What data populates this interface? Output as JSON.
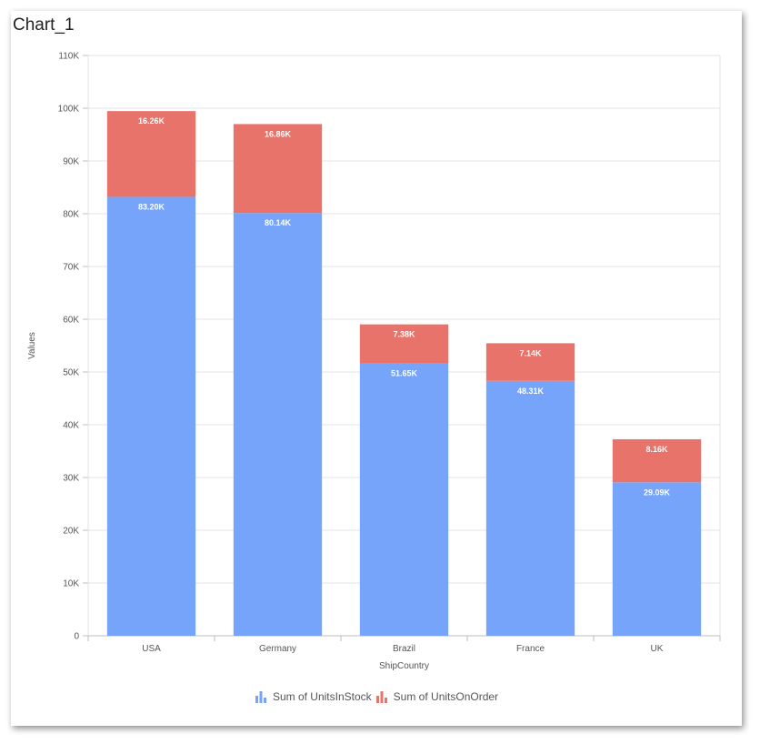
{
  "chart_data": {
    "type": "bar",
    "stacked": true,
    "title": "Chart_1",
    "xlabel": "ShipCountry",
    "ylabel": "Values",
    "categories": [
      "USA",
      "Germany",
      "Brazil",
      "France",
      "UK"
    ],
    "series": [
      {
        "name": "Sum of UnitsInStock",
        "color": "#75a4fa",
        "values": [
          83200,
          80140,
          51650,
          48310,
          29090
        ],
        "labels": [
          "83.20K",
          "80.14K",
          "51.65K",
          "48.31K",
          "29.09K"
        ]
      },
      {
        "name": "Sum of UnitsOnOrder",
        "color": "#e8736a",
        "values": [
          16260,
          16860,
          7380,
          7140,
          8160
        ],
        "labels": [
          "16.26K",
          "16.86K",
          "7.38K",
          "7.14K",
          "8.16K"
        ]
      }
    ],
    "ylim": [
      0,
      110000
    ],
    "yticks": [
      0,
      10000,
      20000,
      30000,
      40000,
      50000,
      60000,
      70000,
      80000,
      90000,
      100000,
      110000
    ],
    "ytick_labels": [
      "0",
      "10K",
      "20K",
      "30K",
      "40K",
      "50K",
      "60K",
      "70K",
      "80K",
      "90K",
      "100K",
      "110K"
    ],
    "grid": true,
    "legend_position": "bottom"
  }
}
